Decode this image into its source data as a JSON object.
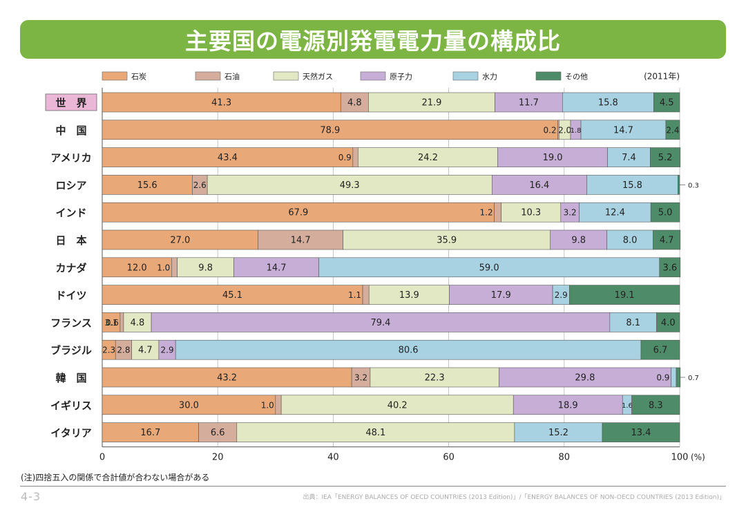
{
  "title": "主要国の電源別発電電力量の構成比",
  "year_note": "(2011年)",
  "note": "(注)四捨五入の関係で合計値が合わない場合がある",
  "page_number": "4-3",
  "source": "出典：IEA「ENERGY BALANCES OF OECD COUNTRIES (2013 Edition)」/「ENERGY BALANCES OF NON-OECD COUNTRIES (2013 Edition)」",
  "chart_data": {
    "type": "bar",
    "orientation": "horizontal-stacked",
    "xlim": [
      0,
      100
    ],
    "x_ticks": [
      "0",
      "20",
      "40",
      "60",
      "80",
      "100"
    ],
    "x_unit": "(%)",
    "grid": true,
    "legend_position": "top",
    "categories": [
      "世　界",
      "中　国",
      "アメリカ",
      "ロシア",
      "インド",
      "日　本",
      "カナダ",
      "ドイツ",
      "フランス",
      "ブラジル",
      "韓　国",
      "イギリス",
      "イタリア"
    ],
    "series": [
      {
        "name": "石炭",
        "color": "#e8a878",
        "values": [
          41.3,
          78.9,
          43.4,
          15.6,
          67.9,
          27.0,
          12.0,
          45.1,
          3.1,
          2.3,
          43.2,
          30.0,
          16.7
        ]
      },
      {
        "name": "石油",
        "color": "#d4ad9c",
        "values": [
          4.8,
          0.2,
          0.9,
          2.6,
          1.2,
          14.7,
          1.0,
          1.1,
          0.6,
          2.8,
          3.2,
          1.0,
          6.6
        ]
      },
      {
        "name": "天然ガス",
        "color": "#e2e8c3",
        "values": [
          21.9,
          2.0,
          24.2,
          49.3,
          10.3,
          35.9,
          9.8,
          13.9,
          4.8,
          4.7,
          22.3,
          40.2,
          48.1
        ]
      },
      {
        "name": "原子力",
        "color": "#c6aed6",
        "values": [
          11.7,
          1.8,
          19.0,
          16.4,
          3.2,
          9.8,
          14.7,
          17.9,
          79.4,
          2.9,
          29.8,
          18.9,
          0
        ]
      },
      {
        "name": "水力",
        "color": "#a8d2e2",
        "values": [
          15.8,
          14.7,
          7.4,
          15.8,
          12.4,
          8.0,
          59.0,
          2.9,
          8.1,
          80.6,
          0.9,
          1.6,
          15.2
        ]
      },
      {
        "name": "その他",
        "color": "#4e8b68",
        "values": [
          4.5,
          2.4,
          5.2,
          0.3,
          5.0,
          4.7,
          3.6,
          19.1,
          4.0,
          6.7,
          0.7,
          8.3,
          13.4
        ]
      }
    ]
  }
}
